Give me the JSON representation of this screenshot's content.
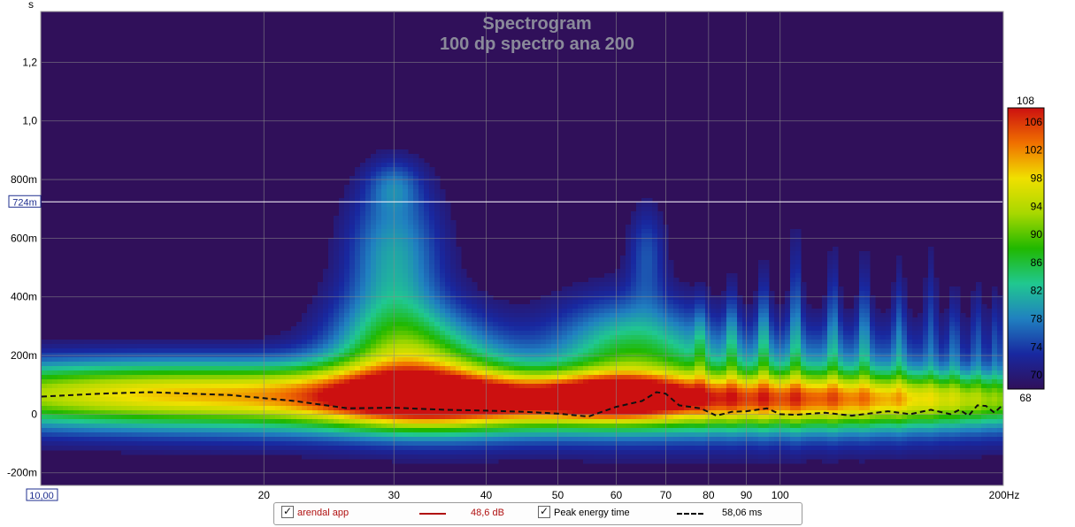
{
  "chart_data": {
    "type": "heatmap",
    "title": "Spectrogram",
    "subtitle": "100 dp spectro ana 200",
    "x_scale": "log",
    "xlim": [
      10,
      200
    ],
    "x_unit": "Hz",
    "x_ticks": [
      {
        "v": 10,
        "label": "10,00"
      },
      {
        "v": 20,
        "label": "20"
      },
      {
        "v": 30,
        "label": "30"
      },
      {
        "v": 40,
        "label": "40"
      },
      {
        "v": 50,
        "label": "50"
      },
      {
        "v": 60,
        "label": "60"
      },
      {
        "v": 70,
        "label": "70"
      },
      {
        "v": 80,
        "label": "80"
      },
      {
        "v": 90,
        "label": "90"
      },
      {
        "v": 100,
        "label": "100"
      },
      {
        "v": 200,
        "label": "200Hz"
      }
    ],
    "y_unit": "s",
    "ylim": [
      -0.24,
      1.37
    ],
    "y_ticks": [
      {
        "v": 1.2,
        "label": "1,2"
      },
      {
        "v": 1.0,
        "label": "1,0"
      },
      {
        "v": 0.8,
        "label": "800m"
      },
      {
        "v": 0.6,
        "label": "600m"
      },
      {
        "v": 0.4,
        "label": "400m"
      },
      {
        "v": 0.2,
        "label": "200m"
      },
      {
        "v": 0.0,
        "label": "0"
      },
      {
        "v": -0.2,
        "label": "-200m"
      }
    ],
    "cursor": {
      "y": 0.724,
      "label": "724m"
    },
    "grid": true,
    "colorbar": {
      "min": 68,
      "max": 108,
      "labels": [
        "108",
        "106",
        "102",
        "98",
        "94",
        "90",
        "86",
        "82",
        "78",
        "74",
        "70",
        "68"
      ],
      "colors": [
        "#cc1010",
        "#f07000",
        "#f0e000",
        "#a8d800",
        "#20b800",
        "#20c890",
        "#2080c0",
        "#1828a0",
        "#30105a"
      ]
    },
    "peak_energy_time": {
      "name": "Peak energy time",
      "x": [
        10,
        12,
        14,
        18,
        22,
        26,
        30,
        35,
        40,
        45,
        50,
        55,
        60,
        65,
        68,
        70,
        73,
        78,
        82,
        86,
        90,
        96,
        100,
        105,
        115,
        125,
        140,
        150,
        160,
        170,
        175,
        180,
        185,
        190,
        195,
        200
      ],
      "y": [
        0.06,
        0.07,
        0.075,
        0.065,
        0.045,
        0.02,
        0.022,
        0.015,
        0.012,
        0.008,
        0.002,
        -0.008,
        0.025,
        0.045,
        0.075,
        0.07,
        0.03,
        0.02,
        -0.005,
        0.008,
        0.01,
        0.02,
        0.0,
        -0.002,
        0.005,
        -0.005,
        0.01,
        0.0,
        0.015,
        0.0,
        0.015,
        -0.005,
        0.03,
        0.028,
        0.005,
        0.03
      ]
    },
    "blobs": [
      {
        "f": 15,
        "t": 0.07,
        "sf": 0.32,
        "st": 0.08,
        "a": 28
      },
      {
        "f": 30,
        "t": 0.05,
        "sf": 0.09,
        "st": 0.07,
        "a": 10
      },
      {
        "f": 30,
        "t": 0.22,
        "sf": 0.065,
        "st": 0.13,
        "a": 16
      },
      {
        "f": 30,
        "t": 0.55,
        "sf": 0.045,
        "st": 0.17,
        "a": 12
      },
      {
        "f": 30,
        "t": 0.78,
        "sf": 0.025,
        "st": 0.06,
        "a": 6
      },
      {
        "f": 36,
        "t": 0.15,
        "sf": 0.07,
        "st": 0.12,
        "a": 10
      },
      {
        "f": 42,
        "t": 0.04,
        "sf": 0.12,
        "st": 0.06,
        "a": 10
      },
      {
        "f": 60,
        "t": 0.06,
        "sf": 0.06,
        "st": 0.05,
        "a": 14
      },
      {
        "f": 62,
        "t": 0.22,
        "sf": 0.07,
        "st": 0.13,
        "a": 13
      },
      {
        "f": 66,
        "t": 0.55,
        "sf": 0.018,
        "st": 0.12,
        "a": 7
      },
      {
        "f": 100,
        "t": 0.05,
        "sf": 0.35,
        "st": 0.06,
        "a": 22
      },
      {
        "f": 100,
        "t": 0.15,
        "sf": 0.2,
        "st": 0.12,
        "a": 10
      },
      {
        "f": 80,
        "t": 0.0,
        "sf": 0.5,
        "st": 0.09,
        "a": 8
      }
    ],
    "spikes": [
      {
        "f": 78,
        "t": 0.22,
        "h": 0.12,
        "a": 6
      },
      {
        "f": 86,
        "t": 0.25,
        "h": 0.14,
        "a": 7
      },
      {
        "f": 95,
        "t": 0.27,
        "h": 0.16,
        "a": 8
      },
      {
        "f": 105,
        "t": 0.32,
        "h": 0.2,
        "a": 8
      },
      {
        "f": 118,
        "t": 0.3,
        "h": 0.18,
        "a": 7
      },
      {
        "f": 130,
        "t": 0.3,
        "h": 0.17,
        "a": 7
      },
      {
        "f": 145,
        "t": 0.28,
        "h": 0.17,
        "a": 6
      },
      {
        "f": 160,
        "t": 0.33,
        "h": 0.18,
        "a": 5
      },
      {
        "f": 172,
        "t": 0.25,
        "h": 0.14,
        "a": 5
      },
      {
        "f": 185,
        "t": 0.26,
        "h": 0.14,
        "a": 5
      },
      {
        "f": 196,
        "t": 0.25,
        "h": 0.13,
        "a": 5
      }
    ]
  },
  "y_unit_label": "s",
  "legend": {
    "item1": {
      "label": "arendal app",
      "value": "48,6 dB",
      "color": "#b01010"
    },
    "item2": {
      "label": "Peak energy time",
      "value": "58,06 ms",
      "color": "#000000"
    }
  }
}
